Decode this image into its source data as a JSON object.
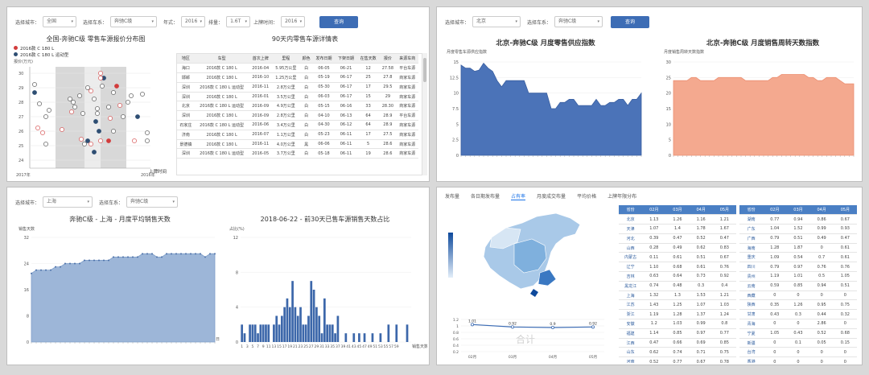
{
  "panel1": {
    "filters": {
      "type_label": "选择城市：",
      "type_value": "全国",
      "brand_label": "选择车系：",
      "brand_value": "奔驰C级",
      "year_label": "年式：",
      "year_value": "2016",
      "displacement_label": "排量：",
      "displacement_value": "1.6T",
      "listing_label": "上牌时间：",
      "listing_value": "2016",
      "query": "查询"
    },
    "scatter_title": "全国-奔驰C级 零售车源报价分布图",
    "legend": [
      "2016款 C 180 L",
      "2016款 C 180 L 运动型"
    ],
    "y_axis_label": "报价(万元)",
    "x_axis_label": "上牌时间",
    "x_ticks": [
      "2017年",
      "2016年"
    ],
    "y_ticks": [
      "30",
      "29",
      "28",
      "27",
      "26",
      "25",
      "24"
    ],
    "table_title": "90天内零售车源详情表",
    "table_headers": [
      "地区",
      "车型",
      "首次上牌",
      "里程",
      "颜色",
      "发布日期",
      "下架日期",
      "在售天数",
      "报价",
      "来源车商"
    ],
    "table_rows": [
      [
        "海口",
        "2016款 C 180 L",
        "2016-04",
        "5.95万公里",
        "白",
        "06-05",
        "06-21",
        "12",
        "27.58",
        "平台车源"
      ],
      [
        "邯郸",
        "2016款 C 180 L",
        "2016-10",
        "1.25万公里",
        "白",
        "05-19",
        "06-17",
        "25",
        "27.8",
        "商家车源"
      ],
      [
        "深圳",
        "2016款 C 180 L 运动型",
        "2016-11",
        "2.8万公里",
        "白",
        "05-30",
        "06-17",
        "17",
        "29.5",
        "商家车源"
      ],
      [
        "深圳",
        "2016款 C 180 L",
        "2016-01",
        "3.5万公里",
        "白",
        "06-03",
        "06-17",
        "15",
        "29",
        "商家车源"
      ],
      [
        "北京",
        "2016款 C 180 L 运动型",
        "2016-09",
        "4.9万公里",
        "白",
        "05-15",
        "06-16",
        "33",
        "28.30",
        "商家车源"
      ],
      [
        "深圳",
        "2016款 C 180 L",
        "2016-09",
        "2.8万公里",
        "白",
        "04-10",
        "06-13",
        "64",
        "28.9",
        "平台车源"
      ],
      [
        "石家庄",
        "2016款 C 180 L 运动型",
        "2016-06",
        "3.4万公里",
        "白",
        "04-30",
        "06-12",
        "64",
        "28.9",
        "商家车源"
      ],
      [
        "济南",
        "2016款 C 180 L",
        "2016-07",
        "1.1万公里",
        "白",
        "05-23",
        "06-11",
        "17",
        "27.5",
        "商家车源"
      ],
      [
        "景德镇",
        "2016款 C 180 L",
        "2016-11",
        "4.0万公里",
        "黑",
        "06-06",
        "06-11",
        "5",
        "28.6",
        "商家车源"
      ],
      [
        "深圳",
        "2016款 C 180 L 运动型",
        "2016-05",
        "3.7万公里",
        "白",
        "05-18",
        "06-11",
        "19",
        "28.6",
        "商家车源"
      ]
    ]
  },
  "panel2": {
    "filters": {
      "city_label": "选择城市：",
      "city_value": "北京",
      "series_label": "选择车系：",
      "series_value": "奔驰C级",
      "query": "查询"
    },
    "left_title": "北京-奔驰C级 月度零售供应指数",
    "left_subtitle": "月度零售车源供应指数",
    "right_title": "北京-奔驰C级 月度销售周转天数指数",
    "right_subtitle": "月度销售周转天数指数",
    "left_y_ticks": [
      "15",
      "12.5",
      "10",
      "7.5",
      "5",
      "2.5",
      "0"
    ],
    "right_y_ticks": [
      "30",
      "25",
      "20",
      "15",
      "10",
      "5",
      "0"
    ],
    "left_values": [
      14.5,
      14,
      14,
      13.5,
      13.7,
      14.8,
      14,
      13.5,
      12,
      11,
      12,
      12,
      12,
      12,
      12,
      10,
      10,
      10,
      10,
      10,
      7.5,
      7.5,
      8.5,
      8.5,
      9,
      9,
      8,
      8,
      8,
      8,
      9,
      8,
      8,
      8.5,
      8.5,
      9,
      9,
      8,
      9,
      9,
      10
    ],
    "right_values": [
      24,
      24,
      24,
      24,
      25,
      25,
      24,
      24,
      24,
      24,
      25,
      25,
      25,
      25,
      25,
      25,
      24,
      24,
      24,
      24,
      24,
      24,
      25,
      25,
      26,
      26,
      26,
      26,
      26,
      26,
      25,
      25,
      24,
      24,
      25,
      25,
      25,
      24,
      23,
      23,
      23
    ]
  },
  "panel3": {
    "filters": {
      "city_label": "选择城市：",
      "city_value": "上海",
      "series_label": "选择车系：",
      "series_value": "奔驰C级"
    },
    "left_title": "奔驰C级 - 上海 - 月度平均销售天数",
    "left_ylabel": "销售天数",
    "left_y_ticks": [
      "32",
      "24",
      "16",
      "8",
      "0"
    ],
    "left_xlabel": "日",
    "left_values": [
      21,
      22,
      22,
      22,
      22,
      23,
      23,
      24,
      24,
      24,
      24,
      25,
      25,
      25,
      25,
      25,
      25,
      26,
      26,
      26,
      26,
      26,
      26,
      27,
      27,
      27,
      26,
      26,
      27,
      27,
      27,
      27,
      27,
      27,
      27,
      27,
      26,
      27,
      27
    ],
    "right_title": "2018-06-22 - 前30天已售车源销售天数占比",
    "right_ylabel": "占比(%)",
    "right_y_ticks": [
      "12",
      "8",
      "4",
      "0"
    ],
    "right_xlabel": "销售天数",
    "right_x_ticks": [
      "1",
      "3",
      "5",
      "7",
      "9",
      "11",
      "13",
      "15",
      "17",
      "19",
      "21",
      "23",
      "25",
      "27",
      "29",
      "31",
      "33",
      "35",
      "37",
      "39",
      "41",
      "43",
      "45",
      "47",
      "49",
      "51",
      "53",
      "55",
      "57",
      "59"
    ],
    "right_values": [
      2,
      1,
      0,
      2,
      2,
      2,
      1,
      2,
      2,
      2,
      2,
      0,
      2,
      3,
      2,
      3,
      4,
      5,
      4,
      7,
      4,
      3,
      4,
      2,
      2,
      3,
      7,
      6,
      4,
      3,
      1,
      5,
      2,
      2,
      2,
      1,
      3,
      0,
      0,
      1,
      0,
      0,
      1,
      0,
      1,
      0,
      1,
      0,
      0,
      1,
      0,
      0,
      1,
      0,
      0,
      2,
      0,
      0,
      2,
      0,
      0,
      0,
      2,
      0
    ]
  },
  "panel4": {
    "tabs": [
      "发布量",
      "各日期发布量",
      "占有率",
      "月度成交布量",
      "平均价格",
      "上牌年限分布"
    ],
    "active_tab": 2,
    "overlay_text": "合计",
    "mini_values": [
      "1.01",
      "0.92",
      "0.9",
      "0.92"
    ],
    "mini_y_ticks": [
      "1.2",
      "1",
      "0.8",
      "0.6",
      "0.4",
      "0.2"
    ],
    "mini_x_ticks": [
      "02月",
      "03月",
      "04月",
      "05月"
    ],
    "table_headers": [
      "省份",
      "02月",
      "03月",
      "04月",
      "05月"
    ],
    "table_left": [
      [
        "北京",
        "1.13",
        "1.26",
        "1.16",
        "1.21"
      ],
      [
        "天津",
        "1.07",
        "1.4",
        "1.78",
        "1.67"
      ],
      [
        "河北",
        "0.39",
        "0.47",
        "0.52",
        "0.47"
      ],
      [
        "山西",
        "0.28",
        "0.49",
        "0.62",
        "0.83"
      ],
      [
        "内蒙古",
        "0.11",
        "0.61",
        "0.51",
        "0.67"
      ],
      [
        "辽宁",
        "1.10",
        "0.68",
        "0.61",
        "0.76"
      ],
      [
        "吉林",
        "0.63",
        "0.64",
        "0.73",
        "0.92"
      ],
      [
        "黑龙江",
        "0.74",
        "0.48",
        "0.3",
        "0.4"
      ],
      [
        "上海",
        "1.32",
        "1.3",
        "1.53",
        "1.21"
      ],
      [
        "江苏",
        "1.43",
        "1.25",
        "1.07",
        "1.03"
      ],
      [
        "浙江",
        "1.19",
        "1.28",
        "1.37",
        "1.24"
      ],
      [
        "安徽",
        "1.2",
        "1.03",
        "0.99",
        "0.8"
      ],
      [
        "福建",
        "1.14",
        "0.85",
        "0.97",
        "0.77"
      ],
      [
        "江西",
        "0.47",
        "0.66",
        "0.69",
        "0.85"
      ],
      [
        "山东",
        "0.62",
        "0.74",
        "0.71",
        "0.75"
      ],
      [
        "河南",
        "0.52",
        "0.77",
        "0.67",
        "0.78"
      ],
      [
        "湖北",
        "0.97",
        "0.89",
        "0.76",
        "0.83"
      ]
    ],
    "table_right": [
      [
        "湖南",
        "0.77",
        "0.94",
        "0.86",
        "0.67"
      ],
      [
        "广东",
        "1.04",
        "1.52",
        "0.99",
        "0.93"
      ],
      [
        "广西",
        "0.79",
        "0.51",
        "0.49",
        "0.47"
      ],
      [
        "海南",
        "1.28",
        "1.87",
        "0",
        "0.61"
      ],
      [
        "重庆",
        "1.09",
        "0.54",
        "0.7",
        "0.61"
      ],
      [
        "四川",
        "0.79",
        "0.97",
        "0.76",
        "0.76"
      ],
      [
        "贵州",
        "1.19",
        "1.01",
        "0.5",
        "1.05"
      ],
      [
        "云南",
        "0.59",
        "0.85",
        "0.94",
        "0.51"
      ],
      [
        "西藏",
        "0",
        "0",
        "0",
        "0"
      ],
      [
        "陕西",
        "0.35",
        "1.26",
        "0.95",
        "0.75"
      ],
      [
        "甘肃",
        "0.43",
        "0.3",
        "0.44",
        "0.32"
      ],
      [
        "青海",
        "0",
        "0",
        "2.86",
        "0"
      ],
      [
        "宁夏",
        "1.05",
        "0.43",
        "0.52",
        "0.68"
      ],
      [
        "新疆",
        "0",
        "0.1",
        "0.05",
        "0.15"
      ],
      [
        "台湾",
        "0",
        "0",
        "0",
        "0"
      ],
      [
        "香港",
        "0",
        "0",
        "0",
        "0"
      ],
      [
        "澳门",
        "0",
        "0",
        "0",
        "0"
      ]
    ]
  }
}
